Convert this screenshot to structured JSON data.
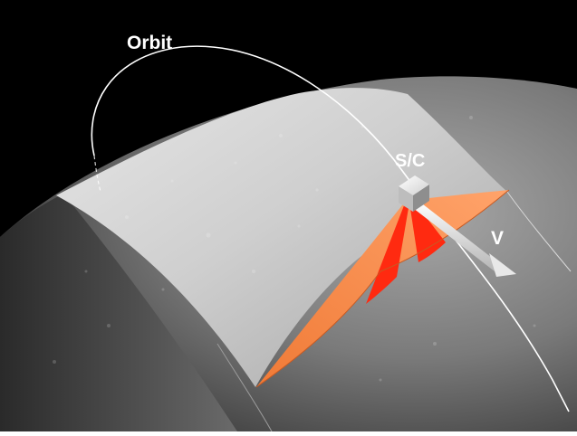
{
  "labels": {
    "orbit": "Orbit",
    "spacecraft": "S/C",
    "velocity": "V"
  },
  "colors": {
    "space": "#000000",
    "planet_shadow": "#555555",
    "swath_lit": "#c9c9c9",
    "footprint_outer": "#ff8a4a",
    "footprint_inner": "#ff1a0a",
    "orbit_line": "#ffffff"
  }
}
